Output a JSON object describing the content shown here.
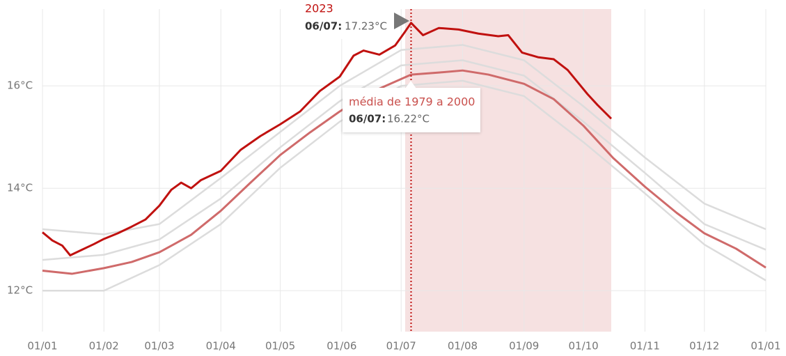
{
  "chart_data": {
    "type": "line",
    "xlim": [
      0,
      365
    ],
    "xticks": [
      {
        "value": 0,
        "label": "01/01"
      },
      {
        "value": 31,
        "label": "01/02"
      },
      {
        "value": 59,
        "label": "01/03"
      },
      {
        "value": 90,
        "label": "01/04"
      },
      {
        "value": 120,
        "label": "01/05"
      },
      {
        "value": 151,
        "label": "01/06"
      },
      {
        "value": 181,
        "label": "01/07"
      },
      {
        "value": 212,
        "label": "01/08"
      },
      {
        "value": 243,
        "label": "01/09"
      },
      {
        "value": 273,
        "label": "01/10"
      },
      {
        "value": 304,
        "label": "01/11"
      },
      {
        "value": 334,
        "label": "01/12"
      },
      {
        "value": 365,
        "label": "01/01"
      }
    ],
    "ylim": [
      11.2,
      17.5
    ],
    "yticks": [
      {
        "value": 12,
        "label": "12°C"
      },
      {
        "value": 14,
        "label": "14°C"
      },
      {
        "value": 16,
        "label": "16°C"
      }
    ],
    "grid": true,
    "highlight": [
      183,
      287
    ],
    "highlight_color": "#f6e1e1",
    "marker_x": 186,
    "series": [
      {
        "color": "#dcdcdc",
        "x": [
          0,
          31,
          59,
          90,
          120,
          150,
          181,
          212,
          243,
          273,
          304,
          334,
          365
        ],
        "values": [
          13.2,
          13.1,
          13.3,
          14.2,
          15.1,
          16.0,
          16.7,
          16.8,
          16.5,
          15.6,
          14.6,
          13.7,
          13.2
        ]
      },
      {
        "color": "#dcdcdc",
        "x": [
          0,
          31,
          59,
          90,
          120,
          150,
          181,
          212,
          243,
          273,
          304,
          334,
          365
        ],
        "values": [
          12.6,
          12.7,
          13.0,
          13.8,
          14.8,
          15.7,
          16.4,
          16.5,
          16.2,
          15.3,
          14.3,
          13.3,
          12.8
        ]
      },
      {
        "color": "#dcdcdc",
        "x": [
          0,
          31,
          59,
          90,
          120,
          150,
          181,
          212,
          243,
          273,
          304,
          334,
          365
        ],
        "values": [
          12.0,
          12.0,
          12.5,
          13.3,
          14.4,
          15.3,
          16.0,
          16.1,
          15.8,
          14.9,
          13.9,
          12.9,
          12.2
        ]
      },
      {
        "name": "média de 1979 a 2000",
        "color": "#cf6a6a",
        "x": [
          0,
          15,
          31,
          45,
          59,
          75,
          90,
          105,
          120,
          135,
          150,
          165,
          186,
          200,
          212,
          225,
          243,
          258,
          273,
          288,
          304,
          320,
          334,
          350,
          365
        ],
        "values": [
          12.39,
          12.33,
          12.44,
          12.56,
          12.75,
          13.09,
          13.56,
          14.11,
          14.65,
          15.09,
          15.5,
          15.86,
          16.22,
          16.26,
          16.3,
          16.22,
          16.04,
          15.74,
          15.22,
          14.59,
          14.03,
          13.52,
          13.12,
          12.82,
          12.45
        ]
      },
      {
        "name": "2023",
        "color": "#c0110f",
        "x": [
          0,
          5,
          10,
          14,
          20,
          26,
          31,
          38,
          45,
          52,
          59,
          65,
          70,
          75,
          80,
          90,
          100,
          110,
          120,
          130,
          140,
          150,
          157,
          162,
          170,
          178,
          183,
          186,
          192,
          200,
          210,
          220,
          230,
          235,
          242,
          250,
          258,
          265,
          275,
          280,
          287
        ],
        "values": [
          13.14,
          12.98,
          12.88,
          12.69,
          12.8,
          12.91,
          13.01,
          13.12,
          13.25,
          13.39,
          13.66,
          13.97,
          14.11,
          14.0,
          14.16,
          14.34,
          14.75,
          15.02,
          15.25,
          15.5,
          15.9,
          16.18,
          16.59,
          16.69,
          16.61,
          16.79,
          17.06,
          17.23,
          16.99,
          17.13,
          17.1,
          17.02,
          16.97,
          16.99,
          16.65,
          16.56,
          16.52,
          16.31,
          15.84,
          15.63,
          15.36
        ]
      }
    ],
    "tooltips": [
      {
        "title": "2023",
        "date": "06/07:",
        "value_label": "17.23°C"
      },
      {
        "title": "média de 1979 a 2000",
        "date": "06/07:",
        "value_label": "16.22°C"
      }
    ]
  }
}
